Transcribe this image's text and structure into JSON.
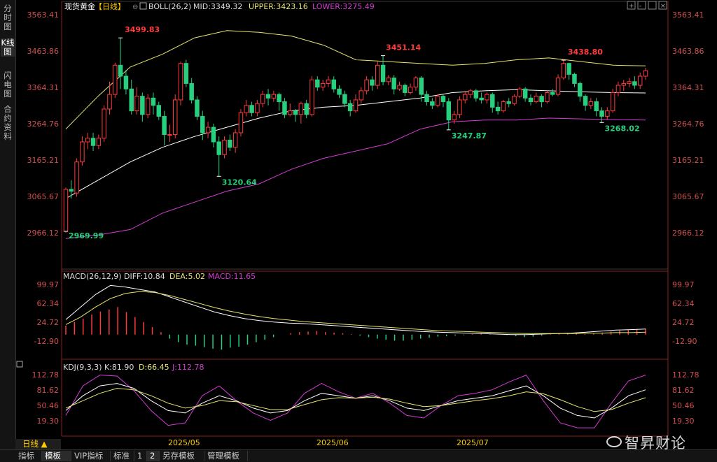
{
  "sidebar": {
    "tabs": [
      {
        "label": "分时图",
        "active": false
      },
      {
        "label": "K线图",
        "active": true
      },
      {
        "label": "闪电图",
        "active": false
      },
      {
        "label": "合约资料",
        "active": false
      }
    ]
  },
  "toolbar_icons": [
    "plus-box-icon",
    "minus-box-icon",
    "window-box-icon",
    "close-box-icon"
  ],
  "main_panel": {
    "title": "现货黄金",
    "period_tag": "【日线】",
    "indicator_name": "BOLL(26,2)",
    "mid": "MID:3349.32",
    "upper": "UPPER:3423.16",
    "lower": "LOWER:3275.49",
    "y_ticks": [
      "3563.41",
      "3463.86",
      "3364.31",
      "3264.76",
      "3165.21",
      "3065.67",
      "2966.12"
    ],
    "annotations": {
      "p1": "3499.83",
      "p2": "3451.14",
      "p3": "3438.80",
      "p4": "3120.64",
      "p5": "3247.87",
      "p6": "3268.02",
      "p7": "2969.99"
    }
  },
  "macd_panel": {
    "label": "MACD(26,12,9)",
    "diff": "DIFF:10.84",
    "dea": "DEA:5.02",
    "macd": "MACD:11.65",
    "y_ticks": [
      "99.97",
      "62.34",
      "24.72",
      "-12.90"
    ]
  },
  "kdj_panel": {
    "label": "KDJ(9,3,3)",
    "k": "K:81.90",
    "d": "D:66.45",
    "j": "J:112.78",
    "y_ticks": [
      "112.78",
      "81.62",
      "50.46",
      "19.30"
    ]
  },
  "x_axis": {
    "labels": [
      "2025/05",
      "2025/06",
      "2025/07"
    ]
  },
  "period_button": "日线 ▲",
  "bottom_tabs": [
    "指标",
    "模板",
    "VIP指标",
    "标准",
    "1",
    "2",
    "另存模板",
    "管理模板"
  ],
  "active_bottom_tab": "模板",
  "watermark": "智昇财论",
  "colors": {
    "up": "#ff3b3b",
    "down": "#27d07e",
    "mid_line": "#ffffff",
    "upper_line": "#e8e66e",
    "lower_line": "#d43bd4",
    "label_yellow": "#ffcc00",
    "axis_text": "#d05050"
  },
  "chart_data": {
    "type": "candlestick",
    "series_name": "现货黄金 日线",
    "ylim": [
      2940,
      3580
    ],
    "candles": [
      [
        2970,
        3085,
        2966,
        3090
      ],
      [
        3085,
        3080,
        3060,
        3110
      ],
      [
        3075,
        3160,
        3065,
        3170
      ],
      [
        3160,
        3215,
        3150,
        3230
      ],
      [
        3215,
        3225,
        3195,
        3240
      ],
      [
        3225,
        3205,
        3190,
        3240
      ],
      [
        3205,
        3225,
        3195,
        3235
      ],
      [
        3225,
        3305,
        3215,
        3315
      ],
      [
        3305,
        3345,
        3290,
        3380
      ],
      [
        3345,
        3425,
        3335,
        3432
      ],
      [
        3425,
        3395,
        3360,
        3500
      ],
      [
        3395,
        3360,
        3345,
        3412
      ],
      [
        3360,
        3300,
        3290,
        3385
      ],
      [
        3300,
        3340,
        3290,
        3365
      ],
      [
        3340,
        3290,
        3270,
        3350
      ],
      [
        3290,
        3335,
        3280,
        3345
      ],
      [
        3335,
        3315,
        3290,
        3350
      ],
      [
        3315,
        3285,
        3275,
        3325
      ],
      [
        3285,
        3235,
        3205,
        3300
      ],
      [
        3235,
        3235,
        3215,
        3262
      ],
      [
        3235,
        3330,
        3225,
        3345
      ],
      [
        3330,
        3430,
        3315,
        3435
      ],
      [
        3430,
        3375,
        3365,
        3440
      ],
      [
        3375,
        3330,
        3320,
        3390
      ],
      [
        3330,
        3285,
        3275,
        3340
      ],
      [
        3285,
        3240,
        3220,
        3300
      ],
      [
        3240,
        3255,
        3225,
        3270
      ],
      [
        3255,
        3215,
        3200,
        3265
      ],
      [
        3215,
        3180,
        3121,
        3230
      ],
      [
        3180,
        3220,
        3170,
        3230
      ],
      [
        3220,
        3200,
        3190,
        3235
      ],
      [
        3200,
        3240,
        3185,
        3250
      ],
      [
        3240,
        3295,
        3230,
        3305
      ],
      [
        3295,
        3315,
        3285,
        3330
      ],
      [
        3315,
        3295,
        3285,
        3325
      ],
      [
        3295,
        3320,
        3285,
        3330
      ],
      [
        3320,
        3345,
        3310,
        3355
      ],
      [
        3345,
        3335,
        3315,
        3360
      ],
      [
        3335,
        3345,
        3325,
        3355
      ],
      [
        3345,
        3325,
        3300,
        3350
      ],
      [
        3325,
        3290,
        3280,
        3335
      ],
      [
        3290,
        3300,
        3285,
        3320
      ],
      [
        3300,
        3290,
        3270,
        3305
      ],
      [
        3290,
        3320,
        3265,
        3325
      ],
      [
        3320,
        3290,
        3280,
        3330
      ],
      [
        3290,
        3385,
        3285,
        3395
      ],
      [
        3385,
        3365,
        3355,
        3395
      ],
      [
        3365,
        3375,
        3355,
        3385
      ],
      [
        3375,
        3385,
        3365,
        3395
      ],
      [
        3385,
        3360,
        3350,
        3395
      ],
      [
        3360,
        3345,
        3335,
        3370
      ],
      [
        3345,
        3320,
        3310,
        3355
      ],
      [
        3320,
        3300,
        3285,
        3330
      ],
      [
        3300,
        3330,
        3295,
        3345
      ],
      [
        3330,
        3355,
        3320,
        3365
      ],
      [
        3355,
        3385,
        3345,
        3395
      ],
      [
        3385,
        3370,
        3355,
        3395
      ],
      [
        3370,
        3425,
        3360,
        3435
      ],
      [
        3425,
        3380,
        3370,
        3451
      ],
      [
        3380,
        3390,
        3370,
        3398
      ],
      [
        3390,
        3360,
        3345,
        3398
      ],
      [
        3360,
        3370,
        3355,
        3380
      ],
      [
        3370,
        3350,
        3340,
        3375
      ],
      [
        3350,
        3365,
        3345,
        3375
      ],
      [
        3365,
        3390,
        3355,
        3395
      ],
      [
        3390,
        3345,
        3325,
        3395
      ],
      [
        3345,
        3325,
        3315,
        3355
      ],
      [
        3325,
        3315,
        3305,
        3335
      ],
      [
        3315,
        3340,
        3310,
        3345
      ],
      [
        3340,
        3325,
        3310,
        3345
      ],
      [
        3325,
        3275,
        3248,
        3335
      ],
      [
        3275,
        3290,
        3265,
        3300
      ],
      [
        3290,
        3330,
        3280,
        3340
      ],
      [
        3330,
        3345,
        3320,
        3355
      ],
      [
        3345,
        3355,
        3335,
        3360
      ],
      [
        3355,
        3335,
        3325,
        3360
      ],
      [
        3335,
        3330,
        3320,
        3350
      ],
      [
        3330,
        3345,
        3320,
        3350
      ],
      [
        3345,
        3310,
        3295,
        3350
      ],
      [
        3310,
        3300,
        3290,
        3325
      ],
      [
        3300,
        3325,
        3295,
        3330
      ],
      [
        3325,
        3320,
        3310,
        3335
      ],
      [
        3320,
        3340,
        3315,
        3345
      ],
      [
        3340,
        3360,
        3335,
        3365
      ],
      [
        3360,
        3335,
        3325,
        3365
      ],
      [
        3335,
        3325,
        3315,
        3345
      ],
      [
        3325,
        3340,
        3320,
        3350
      ],
      [
        3340,
        3325,
        3310,
        3345
      ],
      [
        3325,
        3350,
        3320,
        3355
      ],
      [
        3350,
        3345,
        3340,
        3360
      ],
      [
        3345,
        3390,
        3340,
        3400
      ],
      [
        3390,
        3430,
        3385,
        3439
      ],
      [
        3430,
        3400,
        3385,
        3432
      ],
      [
        3400,
        3375,
        3365,
        3405
      ],
      [
        3375,
        3340,
        3325,
        3380
      ],
      [
        3340,
        3315,
        3300,
        3345
      ],
      [
        3315,
        3325,
        3305,
        3335
      ],
      [
        3325,
        3300,
        3285,
        3335
      ],
      [
        3300,
        3285,
        3268,
        3310
      ],
      [
        3285,
        3300,
        3275,
        3310
      ],
      [
        3300,
        3350,
        3295,
        3360
      ],
      [
        3350,
        3370,
        3340,
        3380
      ],
      [
        3370,
        3375,
        3355,
        3385
      ],
      [
        3375,
        3380,
        3365,
        3390
      ],
      [
        3380,
        3370,
        3360,
        3395
      ],
      [
        3370,
        3395,
        3360,
        3405
      ],
      [
        3395,
        3410,
        3385,
        3418
      ]
    ],
    "boll_upper": [
      3250,
      3340,
      3420,
      3455,
      3500,
      3520,
      3515,
      3505,
      3480,
      3440,
      3435,
      3430,
      3425,
      3430,
      3440,
      3445,
      3435,
      3425,
      3423
    ],
    "boll_mid": [
      3060,
      3110,
      3160,
      3200,
      3230,
      3255,
      3280,
      3300,
      3310,
      3315,
      3325,
      3335,
      3350,
      3355,
      3358,
      3355,
      3352,
      3350,
      3349
    ],
    "boll_lower": [
      2950,
      2960,
      2975,
      3020,
      3050,
      3080,
      3100,
      3140,
      3170,
      3190,
      3210,
      3250,
      3270,
      3275,
      3275,
      3280,
      3278,
      3276,
      3275
    ],
    "macd_hist": [
      18,
      25,
      32,
      40,
      46,
      50,
      55,
      45,
      35,
      25,
      15,
      5,
      -8,
      -15,
      -20,
      -22,
      -25,
      -28,
      -30,
      -26,
      -24,
      -20,
      -15,
      -10,
      -5,
      0,
      3,
      5,
      6,
      7,
      5,
      4,
      3,
      1,
      -2,
      -5,
      -8,
      -10,
      -12,
      -12,
      -10,
      -8,
      -6,
      -4,
      -3,
      -2,
      -1,
      1,
      3,
      2,
      1,
      -1,
      -3,
      -5,
      -4,
      -2,
      1,
      2,
      3,
      2,
      1,
      2,
      4,
      6,
      8,
      10,
      11,
      12
    ],
    "macd_diff": [
      30,
      55,
      80,
      98,
      95,
      90,
      85,
      75,
      65,
      55,
      45,
      38,
      32,
      28,
      25,
      23,
      22,
      20,
      18,
      16,
      14,
      12,
      10,
      8,
      6,
      5,
      4,
      3,
      2,
      1,
      0,
      0,
      1,
      2,
      3,
      5,
      7,
      9,
      10,
      11
    ],
    "macd_dea": [
      20,
      35,
      55,
      72,
      82,
      86,
      84,
      78,
      70,
      62,
      54,
      47,
      41,
      36,
      32,
      29,
      26,
      24,
      22,
      20,
      18,
      16,
      14,
      12,
      10,
      8,
      7,
      6,
      5,
      4,
      3,
      2,
      2,
      2,
      2,
      3,
      3,
      4,
      4,
      5
    ],
    "kdj_k": [
      40,
      70,
      90,
      95,
      85,
      60,
      40,
      35,
      55,
      70,
      60,
      45,
      35,
      40,
      60,
      75,
      70,
      65,
      70,
      60,
      45,
      40,
      50,
      60,
      65,
      70,
      80,
      90,
      70,
      45,
      30,
      25,
      45,
      70,
      82
    ],
    "kdj_d": [
      45,
      60,
      75,
      85,
      82,
      70,
      55,
      45,
      50,
      60,
      58,
      50,
      42,
      42,
      52,
      62,
      66,
      65,
      67,
      63,
      55,
      48,
      50,
      55,
      60,
      64,
      70,
      78,
      74,
      62,
      48,
      38,
      42,
      55,
      66
    ],
    "kdj_j": [
      30,
      90,
      112,
      110,
      80,
      40,
      10,
      15,
      70,
      90,
      60,
      35,
      20,
      35,
      75,
      95,
      78,
      65,
      75,
      55,
      30,
      25,
      50,
      70,
      75,
      82,
      98,
      112,
      60,
      15,
      5,
      5,
      55,
      100,
      112
    ]
  }
}
